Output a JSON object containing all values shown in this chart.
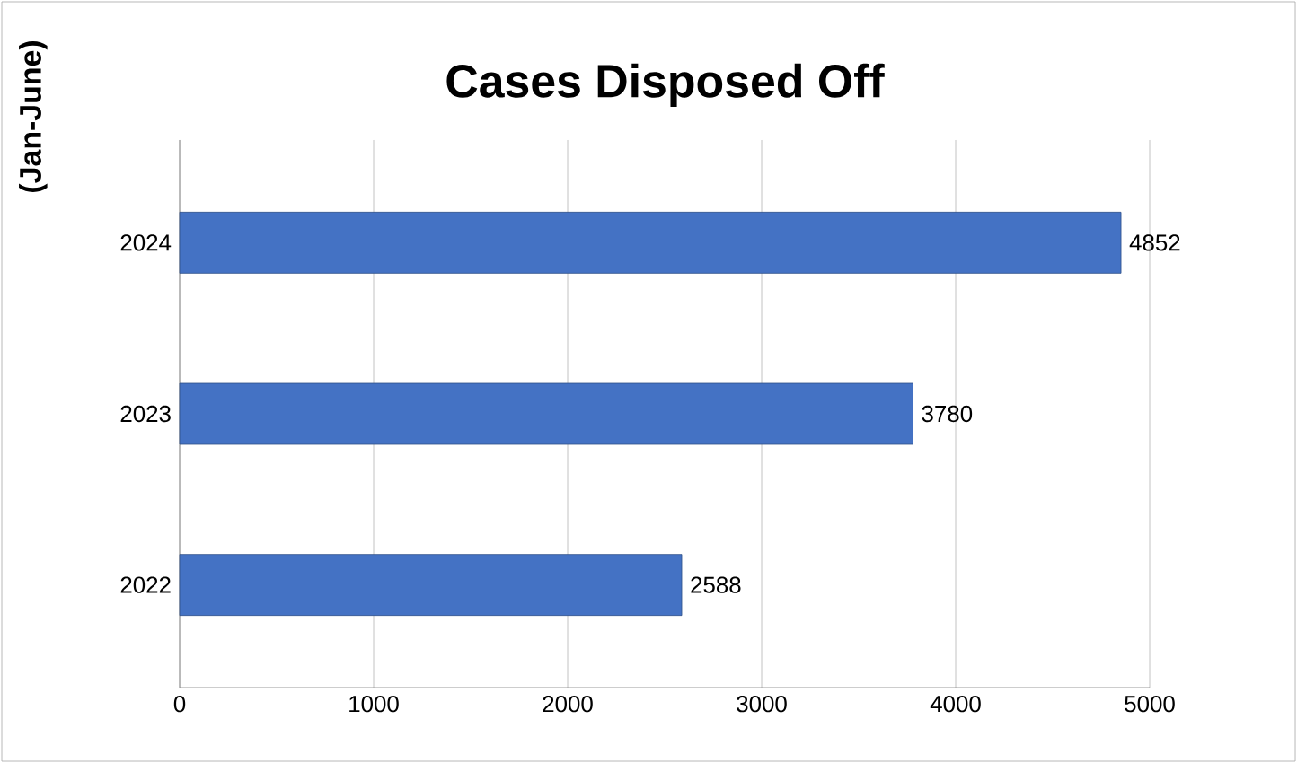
{
  "chart_data": {
    "type": "bar",
    "orientation": "horizontal",
    "title": "Cases Disposed Off",
    "ylabel": "(Jan-June)",
    "categories": [
      "2024",
      "2023",
      "2022"
    ],
    "values": [
      4852,
      3780,
      2588
    ],
    "color": "#4472c4",
    "xlim": [
      0,
      5000
    ],
    "xticks": [
      0,
      1000,
      2000,
      3000,
      4000,
      5000
    ],
    "grid": "x",
    "data_labels": true
  }
}
